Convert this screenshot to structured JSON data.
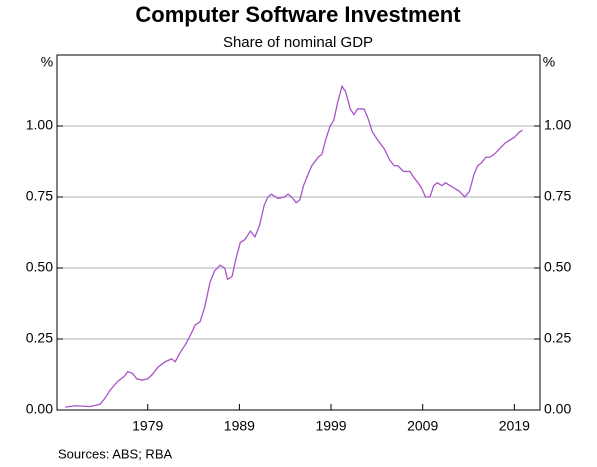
{
  "chart_data": {
    "type": "line",
    "title": "Computer Software Investment",
    "subtitle": "Share of nominal GDP",
    "ylabel": "%",
    "y2label": "%",
    "note": "Sources:  ABS; RBA",
    "x": [
      1970.0,
      1971.1,
      1972.7,
      1973.8,
      1974.3,
      1974.9,
      1975.7,
      1976.5,
      1976.8,
      1977.3,
      1977.8,
      1978.4,
      1979.0,
      1979.5,
      1980.1,
      1980.9,
      1981.6,
      1982.0,
      1982.5,
      1983.1,
      1983.6,
      1984.2,
      1984.7,
      1985.2,
      1985.8,
      1986.3,
      1986.9,
      1987.4,
      1987.7,
      1988.2,
      1988.6,
      1989.1,
      1989.6,
      1990.2,
      1990.7,
      1991.2,
      1991.7,
      1992.1,
      1992.5,
      1993.2,
      1993.9,
      1994.3,
      1994.7,
      1995.2,
      1995.6,
      1996.0,
      1996.5,
      1996.9,
      1997.6,
      1998.0,
      1998.4,
      1998.9,
      1999.3,
      1999.7,
      2000.2,
      2000.6,
      2001.1,
      2001.5,
      2001.9,
      2002.6,
      2003.0,
      2003.5,
      2004.1,
      2004.8,
      2005.4,
      2005.9,
      2006.3,
      2006.9,
      2007.6,
      2008.0,
      2008.5,
      2008.9,
      2009.3,
      2009.8,
      2010.2,
      2010.6,
      2011.1,
      2011.5,
      2012.0,
      2012.5,
      2013.0,
      2013.6,
      2014.1,
      2014.6,
      2015.0,
      2015.4,
      2015.9,
      2016.3,
      2016.8,
      2017.4,
      2018.0,
      2018.5,
      2019.0,
      2019.6,
      2019.9
    ],
    "series": [
      {
        "name": "Computer software investment",
        "color": "#a855c8",
        "values": [
          0.01,
          0.015,
          0.012,
          0.02,
          0.04,
          0.07,
          0.1,
          0.12,
          0.135,
          0.13,
          0.11,
          0.105,
          0.11,
          0.125,
          0.15,
          0.17,
          0.18,
          0.17,
          0.2,
          0.23,
          0.26,
          0.3,
          0.31,
          0.36,
          0.45,
          0.49,
          0.51,
          0.5,
          0.46,
          0.47,
          0.53,
          0.59,
          0.6,
          0.63,
          0.61,
          0.65,
          0.72,
          0.75,
          0.76,
          0.745,
          0.75,
          0.76,
          0.75,
          0.73,
          0.74,
          0.79,
          0.83,
          0.86,
          0.89,
          0.9,
          0.95,
          1.0,
          1.02,
          1.08,
          1.14,
          1.12,
          1.06,
          1.04,
          1.06,
          1.06,
          1.03,
          0.98,
          0.95,
          0.92,
          0.88,
          0.86,
          0.86,
          0.84,
          0.84,
          0.82,
          0.8,
          0.78,
          0.75,
          0.75,
          0.79,
          0.8,
          0.79,
          0.8,
          0.79,
          0.78,
          0.77,
          0.75,
          0.77,
          0.83,
          0.86,
          0.87,
          0.89,
          0.89,
          0.9,
          0.92,
          0.94,
          0.95,
          0.96,
          0.98,
          0.985
        ]
      }
    ],
    "xlim": [
      1969.1,
      2021.8
    ],
    "xticks": [
      1979,
      1989,
      1999,
      2009,
      2019
    ],
    "ylim": [
      0,
      1.25
    ],
    "yticks": [
      {
        "value": 0,
        "label": "0.00"
      },
      0.25,
      {
        "value": 0.5,
        "label": "0.50"
      },
      0.75,
      {
        "value": 1,
        "label": "1.00"
      }
    ],
    "y2lim": [
      0,
      1.25
    ],
    "y2ticks": [
      {
        "value": 0,
        "label": "0.00"
      },
      0.25,
      {
        "value": 0.5,
        "label": "0.50"
      },
      0.75,
      {
        "value": 1,
        "label": "1.00"
      }
    ],
    "grid": true
  }
}
